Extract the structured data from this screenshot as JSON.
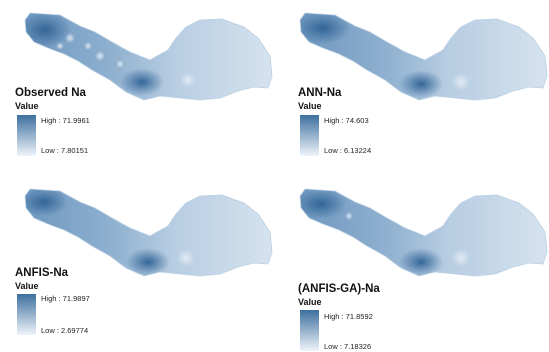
{
  "colors": {
    "high": "#3d6f9e",
    "low": "#eef4fa",
    "outline": "#b9cfe3"
  },
  "panels": [
    {
      "title": "Observed Na",
      "value_label": "Value",
      "high": "High : 71.9961",
      "low": "Low : 7.80151",
      "high_value": 71.9961,
      "low_value": 7.80151
    },
    {
      "title": "ANN-Na",
      "value_label": "Value",
      "high": "High : 74.603",
      "low": "Low : 6.13224",
      "high_value": 74.603,
      "low_value": 6.13224
    },
    {
      "title": "ANFIS-Na",
      "value_label": "Value",
      "high": "High : 71.9897",
      "low": "Low : 2.69774",
      "high_value": 71.9897,
      "low_value": 2.69774
    },
    {
      "title": "(ANFIS-GA)-Na",
      "value_label": "Value",
      "high": "High : 71.8592",
      "low": "Low : 7.18326",
      "high_value": 71.8592,
      "low_value": 7.18326
    }
  ]
}
